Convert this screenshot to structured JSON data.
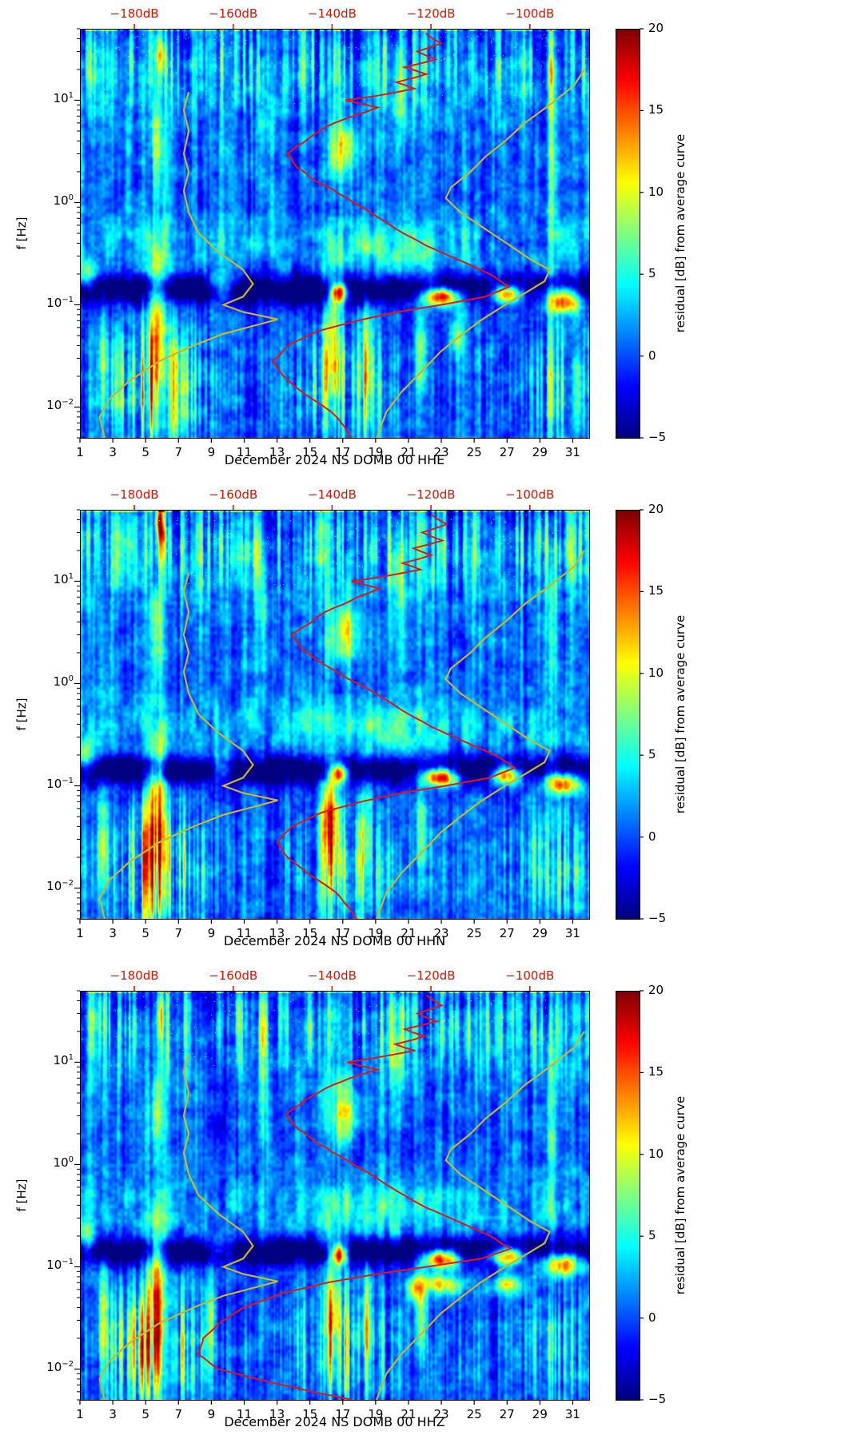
{
  "chart_data": {
    "type": "heatmap",
    "description": "Seismic noise residual spectrograms with mean spectrum and noise model curves",
    "colors": {
      "mean_curve": "#e8140e",
      "model_curve": "#c9b62b",
      "top_axis": "#dd1100",
      "axis": "#000000"
    },
    "x": {
      "ticks": [
        1,
        3,
        5,
        7,
        9,
        11,
        13,
        15,
        17,
        19,
        21,
        23,
        25,
        27,
        29,
        31
      ],
      "range": [
        1,
        32
      ]
    },
    "y": {
      "label": "f [Hz]",
      "scale": "log",
      "range_hz": [
        0.005,
        50
      ],
      "tick_exponents": [
        1,
        0,
        -1,
        -2
      ]
    },
    "top_axis": {
      "ticks_db": [
        -180,
        -160,
        -140,
        -120,
        -100
      ],
      "labels": [
        "-180dB",
        "-160dB",
        "-140dB",
        "-120dB",
        "-100dB"
      ],
      "range_db": [
        -191,
        -88
      ]
    },
    "colorbar": {
      "label": "residual [dB] from average curve",
      "ticks": [
        20,
        15,
        10,
        5,
        0,
        -5
      ],
      "range": [
        -5,
        20
      ],
      "colormap": "jet"
    },
    "texture": {
      "top_stripe_amp": 9,
      "mid_stripe_amp": 3.2,
      "low_stripe_amp": 15,
      "speckle_amp": 2.1,
      "dark_stripe_amp": 2.4
    },
    "features_common": [
      [
        5.7,
        0.55,
        -1.25,
        0.85,
        13
      ],
      [
        5.7,
        0.4,
        0.55,
        0.45,
        8
      ],
      [
        5.9,
        0.3,
        1.45,
        0.22,
        9
      ],
      [
        2.4,
        0.3,
        -1.5,
        0.5,
        7
      ],
      [
        16.4,
        0.5,
        -1.4,
        0.6,
        11
      ],
      [
        17.0,
        0.9,
        0.5,
        0.3,
        10
      ],
      [
        16.8,
        0.5,
        -0.88,
        0.1,
        21
      ],
      [
        23.0,
        1.1,
        -0.92,
        0.09,
        23
      ],
      [
        27.0,
        1.0,
        -0.9,
        0.09,
        20
      ],
      [
        30.4,
        1.2,
        -0.97,
        0.11,
        17
      ],
      [
        9.6,
        0.8,
        -0.82,
        0.13,
        8
      ],
      [
        1.4,
        0.6,
        -0.72,
        0.16,
        9
      ],
      [
        19.0,
        3.5,
        -0.45,
        0.3,
        4
      ],
      [
        29.8,
        0.3,
        0.4,
        1.1,
        6
      ],
      [
        20.4,
        0.5,
        1.1,
        0.5,
        6
      ],
      [
        12.1,
        0.3,
        0.7,
        0.7,
        4
      ],
      [
        18.5,
        0.4,
        -1.5,
        0.5,
        7
      ],
      [
        21.8,
        0.35,
        -1.45,
        0.45,
        7
      ]
    ],
    "models": {
      "low_noise": [
        [
          12,
          -169
        ],
        [
          8,
          -170
        ],
        [
          5,
          -169
        ],
        [
          3,
          -170
        ],
        [
          2,
          -169
        ],
        [
          1.3,
          -170
        ],
        [
          0.8,
          -169
        ],
        [
          0.5,
          -167
        ],
        [
          0.33,
          -163
        ],
        [
          0.22,
          -158
        ],
        [
          0.16,
          -156
        ],
        [
          0.12,
          -158
        ],
        [
          0.1,
          -162
        ],
        [
          0.085,
          -158
        ],
        [
          0.072,
          -151
        ],
        [
          0.062,
          -156
        ],
        [
          0.052,
          -162
        ],
        [
          0.04,
          -168
        ],
        [
          0.028,
          -175
        ],
        [
          0.018,
          -181
        ],
        [
          0.012,
          -185
        ],
        [
          0.008,
          -187
        ],
        [
          0.005,
          -186
        ]
      ],
      "high_noise": [
        [
          20,
          -89
        ],
        [
          14,
          -91
        ],
        [
          9,
          -96
        ],
        [
          6,
          -101
        ],
        [
          4,
          -105
        ],
        [
          2.8,
          -109
        ],
        [
          2,
          -112
        ],
        [
          1.4,
          -116
        ],
        [
          1.1,
          -117
        ],
        [
          0.8,
          -114
        ],
        [
          0.55,
          -109
        ],
        [
          0.38,
          -104
        ],
        [
          0.28,
          -100
        ],
        [
          0.22,
          -96
        ],
        [
          0.17,
          -97
        ],
        [
          0.13,
          -101
        ],
        [
          0.1,
          -105
        ],
        [
          0.07,
          -110
        ],
        [
          0.05,
          -114
        ],
        [
          0.035,
          -118
        ],
        [
          0.022,
          -122
        ],
        [
          0.014,
          -126
        ],
        [
          0.009,
          -129
        ],
        [
          0.005,
          -131
        ]
      ]
    },
    "panels": [
      {
        "title": "December 2024 NS DOMB 00 HHE",
        "seed": 7,
        "mean_spectrum_db": [
          [
            45,
            -121
          ],
          [
            36,
            -118
          ],
          [
            30,
            -123
          ],
          [
            25,
            -119
          ],
          [
            21,
            -125
          ],
          [
            18,
            -121
          ],
          [
            15,
            -127
          ],
          [
            13,
            -123
          ],
          [
            11,
            -131
          ],
          [
            10,
            -137
          ],
          [
            8.5,
            -131
          ],
          [
            7,
            -136
          ],
          [
            5.5,
            -141
          ],
          [
            4.2,
            -145
          ],
          [
            3,
            -149
          ],
          [
            2.2,
            -147
          ],
          [
            1.6,
            -143
          ],
          [
            1.1,
            -137
          ],
          [
            0.8,
            -132
          ],
          [
            0.55,
            -127
          ],
          [
            0.38,
            -121
          ],
          [
            0.27,
            -114
          ],
          [
            0.2,
            -108
          ],
          [
            0.15,
            -104
          ],
          [
            0.12,
            -109
          ],
          [
            0.1,
            -118
          ],
          [
            0.085,
            -127
          ],
          [
            0.07,
            -135
          ],
          [
            0.055,
            -143
          ],
          [
            0.04,
            -149
          ],
          [
            0.028,
            -152
          ],
          [
            0.02,
            -150
          ],
          [
            0.014,
            -146
          ],
          [
            0.009,
            -140
          ],
          [
            0.006,
            -137
          ],
          [
            0.005,
            -136
          ]
        ],
        "features": [
          [
            29.9,
            1.4,
            -0.86,
            0.07,
            5
          ],
          [
            24.0,
            0.5,
            -1.3,
            0.3,
            6
          ]
        ]
      },
      {
        "title": "December 2024 NS DOMB 00 HHN",
        "seed": 13,
        "mean_spectrum_db": [
          [
            45,
            -120
          ],
          [
            36,
            -117
          ],
          [
            30,
            -122
          ],
          [
            25,
            -118
          ],
          [
            21,
            -124
          ],
          [
            18,
            -120
          ],
          [
            15,
            -126
          ],
          [
            13,
            -122
          ],
          [
            11,
            -130
          ],
          [
            10,
            -136
          ],
          [
            8.5,
            -130
          ],
          [
            7,
            -135
          ],
          [
            5.5,
            -140
          ],
          [
            4.2,
            -144
          ],
          [
            3,
            -148
          ],
          [
            2.2,
            -146
          ],
          [
            1.6,
            -142
          ],
          [
            1.1,
            -136
          ],
          [
            0.8,
            -131
          ],
          [
            0.55,
            -126
          ],
          [
            0.38,
            -120
          ],
          [
            0.27,
            -113
          ],
          [
            0.2,
            -107
          ],
          [
            0.15,
            -103
          ],
          [
            0.12,
            -108
          ],
          [
            0.1,
            -117
          ],
          [
            0.085,
            -126
          ],
          [
            0.07,
            -134
          ],
          [
            0.055,
            -142
          ],
          [
            0.04,
            -148
          ],
          [
            0.028,
            -151
          ],
          [
            0.02,
            -149
          ],
          [
            0.014,
            -145
          ],
          [
            0.009,
            -139
          ],
          [
            0.006,
            -136
          ],
          [
            0.005,
            -135
          ]
        ],
        "features": [
          [
            5.8,
            0.25,
            1.6,
            0.12,
            12
          ],
          [
            16.0,
            0.4,
            -1.3,
            0.4,
            6
          ]
        ]
      },
      {
        "title": "December 2024 NS DOMB 00 HHZ",
        "seed": 21,
        "mean_spectrum_db": [
          [
            45,
            -121
          ],
          [
            36,
            -118
          ],
          [
            30,
            -123
          ],
          [
            25,
            -119
          ],
          [
            21,
            -125
          ],
          [
            18,
            -121
          ],
          [
            15,
            -127
          ],
          [
            13,
            -123
          ],
          [
            11,
            -131
          ],
          [
            10,
            -137
          ],
          [
            8.5,
            -131
          ],
          [
            7,
            -136
          ],
          [
            5.5,
            -141
          ],
          [
            4.2,
            -145
          ],
          [
            3,
            -149
          ],
          [
            2.2,
            -147
          ],
          [
            1.6,
            -143
          ],
          [
            1.1,
            -137
          ],
          [
            0.8,
            -132
          ],
          [
            0.55,
            -127
          ],
          [
            0.38,
            -121
          ],
          [
            0.27,
            -114
          ],
          [
            0.2,
            -108
          ],
          [
            0.15,
            -104
          ],
          [
            0.12,
            -110
          ],
          [
            0.1,
            -121
          ],
          [
            0.085,
            -131
          ],
          [
            0.07,
            -141
          ],
          [
            0.055,
            -150
          ],
          [
            0.04,
            -158
          ],
          [
            0.028,
            -163
          ],
          [
            0.02,
            -166
          ],
          [
            0.014,
            -167
          ],
          [
            0.01,
            -163
          ],
          [
            0.008,
            -155
          ],
          [
            0.006,
            -144
          ],
          [
            0.005,
            -136
          ]
        ],
        "features": [
          [
            23.0,
            1.3,
            -1.18,
            0.1,
            12
          ],
          [
            27.0,
            1.0,
            -1.18,
            0.09,
            10
          ],
          [
            21.3,
            0.5,
            -1.22,
            0.12,
            10
          ],
          [
            9.0,
            0.3,
            -1.5,
            0.4,
            6
          ]
        ]
      }
    ]
  }
}
